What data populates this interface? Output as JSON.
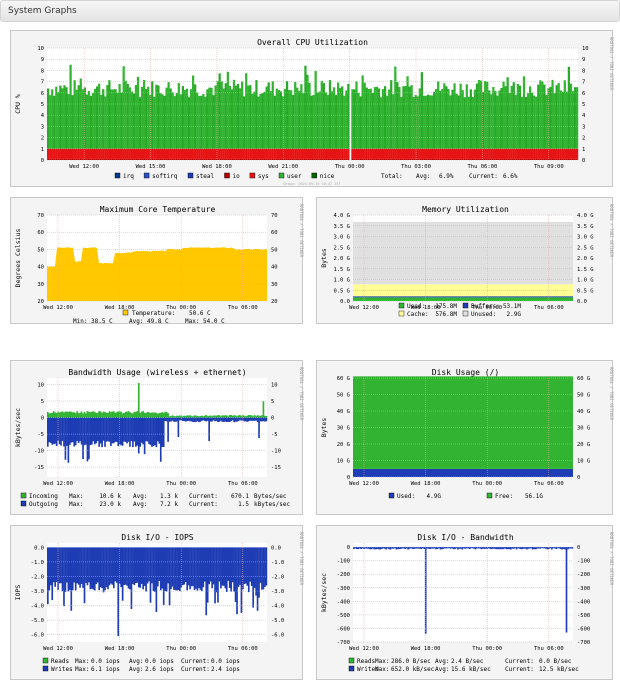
{
  "header": {
    "title": "System Graphs"
  },
  "generated_text": "Drawn: 2024-09-19 16:47 IST",
  "watermark": "RRDTOOL / TOBI OETIKER",
  "chart_data": [
    {
      "id": "cpu",
      "type": "area",
      "title": "Overall CPU Utilization",
      "ylabel": "CPU %",
      "ylim": [
        0,
        10
      ],
      "yticks": [
        "0",
        "1",
        "2",
        "3",
        "4",
        "5",
        "6",
        "7",
        "8",
        "9",
        "10"
      ],
      "xticks": [
        "Wed 12:00",
        "Wed 15:00",
        "Wed 18:00",
        "Wed 21:00",
        "Thu 00:00",
        "Thu 03:00",
        "Thu 06:00",
        "Thu 09:00"
      ],
      "series": [
        {
          "name": "nice",
          "color": "#006400",
          "values": []
        },
        {
          "name": "user",
          "color": "#32b432",
          "values": [
            6.0,
            6.1,
            5.9,
            6.2,
            6.0,
            6.1,
            6.3,
            6.2,
            6.0,
            6.1,
            6.2,
            6.0
          ]
        },
        {
          "name": "sys",
          "color": "#e61414",
          "values": [
            0.8,
            0.8,
            0.8,
            0.8,
            0.8,
            0.8,
            0.8,
            0.8,
            0.8,
            0.8,
            0.8,
            0.8
          ]
        },
        {
          "name": "io",
          "color": "#b40000",
          "values": [
            0.1,
            0.1,
            0.1,
            0.1,
            0.1,
            0.1,
            0.1,
            0.1,
            0.1,
            0.1,
            0.1,
            0.1
          ]
        },
        {
          "name": "steal",
          "color": "#1e3cb4",
          "values": []
        },
        {
          "name": "softirq",
          "color": "#2850c8",
          "values": []
        },
        {
          "name": "irq",
          "color": "#003c8c",
          "values": []
        }
      ],
      "legend_order": [
        "irq",
        "softirq",
        "steal",
        "io",
        "sys",
        "user",
        "nice"
      ],
      "summary": {
        "label": "Total:",
        "avg_label": "Avg:",
        "avg": "6.9%",
        "current_label": "Current:",
        "current": "6.6%"
      }
    },
    {
      "id": "temp",
      "type": "area",
      "title": "Maximum Core Temperature",
      "ylabel": "Degrees Celsius",
      "ylim": [
        20,
        70
      ],
      "yticks": [
        "20",
        "30",
        "40",
        "50",
        "60",
        "70"
      ],
      "xticks": [
        "Wed 12:00",
        "Wed 18:00",
        "Thu 00:00",
        "Thu 06:00"
      ],
      "series": [
        {
          "name": "Temperature:",
          "color": "#ffc800",
          "values": [
            40,
            51,
            51,
            42,
            48,
            49,
            49,
            50,
            51,
            51,
            51,
            50,
            50
          ]
        }
      ],
      "stats": [
        {
          "label": "Temperature:",
          "value": "50.6 C"
        },
        {
          "label": "Min:",
          "value": "38.5 C"
        },
        {
          "label": "Avg:",
          "value": "49.8 C"
        },
        {
          "label": "Max:",
          "value": "54.0 C"
        }
      ]
    },
    {
      "id": "mem",
      "type": "area",
      "title": "Memory Utilization",
      "ylabel": "Bytes",
      "ylim": [
        0,
        4
      ],
      "yticks": [
        "0.0",
        "0.5 G",
        "1.0 G",
        "1.5 G",
        "2.0 G",
        "2.5 G",
        "3.0 G",
        "3.5 G",
        "4.0 G"
      ],
      "xticks": [
        "Wed 12:00",
        "Wed 18:00",
        "Thu 00:00",
        "Thu 06:00"
      ],
      "series": [
        {
          "name": "Used:",
          "color": "#32b432",
          "value_g": 0.17,
          "text": "175.8M"
        },
        {
          "name": "Buffers:",
          "color": "#1e3cb4",
          "value_g": 0.05,
          "text": "53.1M"
        },
        {
          "name": "Cache:",
          "color": "#ffff96",
          "value_g": 0.56,
          "text": "576.8M"
        },
        {
          "name": "Unused:",
          "color": "#e0e0e0",
          "value_g": 2.9,
          "text": "2.9G"
        }
      ]
    },
    {
      "id": "bw",
      "type": "area",
      "title": "Bandwidth Usage (wireless + ethernet)",
      "ylabel": "kBytes/sec",
      "ylim": [
        -18,
        12
      ],
      "yticks": [
        "-15",
        "-10",
        "-5",
        "0",
        "5",
        "10"
      ],
      "ytick_values": [
        -15,
        -10,
        -5,
        0,
        5,
        10
      ],
      "xticks": [
        "Wed 12:00",
        "Wed 18:00",
        "Thu 00:00",
        "Thu 06:00"
      ],
      "series": [
        {
          "name": "Incoming",
          "color": "#32b432",
          "values": [
            1.5,
            1.5,
            2.0,
            1.5,
            1.0,
            0.5,
            0.5,
            0.5,
            0.5,
            0.5,
            0.5,
            1.0
          ]
        },
        {
          "name": "Outgoing",
          "color": "#1e3cb4",
          "values": [
            -7,
            -7,
            -8,
            -8,
            -9,
            -1,
            -1,
            -1,
            -1,
            -1,
            -1,
            -1
          ]
        }
      ],
      "stats": [
        {
          "name": "Incoming",
          "max_label": "Max:",
          "max": "10.6 k",
          "avg_label": "Avg:",
          "avg": "1.3 k",
          "cur_label": "Current:",
          "cur": "670.1",
          "unit": "Bytes/sec"
        },
        {
          "name": "Outgoing",
          "max_label": "Max:",
          "max": "23.0 k",
          "avg_label": "Avg:",
          "avg": "7.2 k",
          "cur_label": "Current:",
          "cur": "1.5",
          "unit": "kBytes/sec"
        }
      ]
    },
    {
      "id": "disk",
      "type": "area",
      "title": "Disk Usage (/)",
      "ylabel": "Bytes",
      "ylim": [
        0,
        60
      ],
      "yticks": [
        "0",
        "10 G",
        "20 G",
        "30 G",
        "40 G",
        "50 G",
        "60 G"
      ],
      "xticks": [
        "Wed 12:00",
        "Wed 18:00",
        "Thu 00:00",
        "Thu 06:00"
      ],
      "series": [
        {
          "name": "Used:",
          "color": "#1e3cb4",
          "value_g": 4.9,
          "text": "4.9G"
        },
        {
          "name": "Free:",
          "color": "#32b432",
          "value_g": 56.1,
          "text": "56.1G"
        }
      ]
    },
    {
      "id": "iops",
      "type": "area",
      "title": "Disk I/O - IOPS",
      "ylabel": "IOPS",
      "ylim": [
        -6.5,
        0.3
      ],
      "yticks": [
        "-6.0",
        "-5.0",
        "-4.0",
        "-3.0",
        "-2.0",
        "-1.0",
        "0.0"
      ],
      "ytick_values": [
        -6,
        -5,
        -4,
        -3,
        -2,
        -1,
        0
      ],
      "xticks": [
        "Wed 12:00",
        "Wed 18:00",
        "Thu 00:00",
        "Thu 06:00"
      ],
      "series": [
        {
          "name": "Reads",
          "color": "#32b432",
          "values": [
            0,
            0,
            0,
            0,
            0,
            0,
            0,
            0
          ]
        },
        {
          "name": "Writes",
          "color": "#1e3cb4",
          "values": [
            -2.6,
            -2.7,
            -2.6,
            -2.5,
            -2.6,
            -2.6,
            -2.4,
            -2.5
          ]
        }
      ],
      "stats": [
        {
          "name": "Reads",
          "max_label": "Max:",
          "max": "0.0 iops",
          "avg_label": "Avg:",
          "avg": "0.0 iops",
          "cur_label": "Current:",
          "cur": "0.0 iops"
        },
        {
          "name": "Writes",
          "max_label": "Max:",
          "max": "6.1 iops",
          "avg_label": "Avg:",
          "avg": "2.6 iops",
          "cur_label": "Current:",
          "cur": "2.4 iops"
        }
      ]
    },
    {
      "id": "dbw",
      "type": "area",
      "title": "Disk I/O - Bandwidth",
      "ylabel": "kBytes/sec",
      "ylim": [
        -700,
        30
      ],
      "yticks": [
        "-700",
        "-600",
        "-500",
        "-400",
        "-300",
        "-200",
        "-100",
        "0"
      ],
      "ytick_values": [
        -700,
        -600,
        -500,
        -400,
        -300,
        -200,
        -100,
        0
      ],
      "xticks": [
        "Wed 12:00",
        "Wed 18:00",
        "Thu 00:00",
        "Thu 06:00"
      ],
      "series": [
        {
          "name": "Reads",
          "color": "#32b432",
          "values": [
            0,
            0,
            0,
            0,
            0,
            0,
            0,
            0
          ]
        },
        {
          "name": "Writes",
          "color": "#1e3cb4",
          "values": [
            -15,
            -15,
            -16,
            -15,
            -15,
            -16,
            -15,
            -12
          ]
        }
      ],
      "stats": [
        {
          "name": "Reads",
          "max_label": "Max:",
          "max": "286.0  B/sec",
          "avg_label": "Avg:",
          "avg": "2.4  B/sec",
          "cur_label": "Current:",
          "cur": "0.0  B/sec"
        },
        {
          "name": "Writes",
          "max_label": "Max:",
          "max": "652.0 kB/sec",
          "avg_label": "Avg:",
          "avg": "15.6 kB/sec",
          "cur_label": "Current:",
          "cur": "12.5 kB/sec"
        }
      ]
    }
  ]
}
